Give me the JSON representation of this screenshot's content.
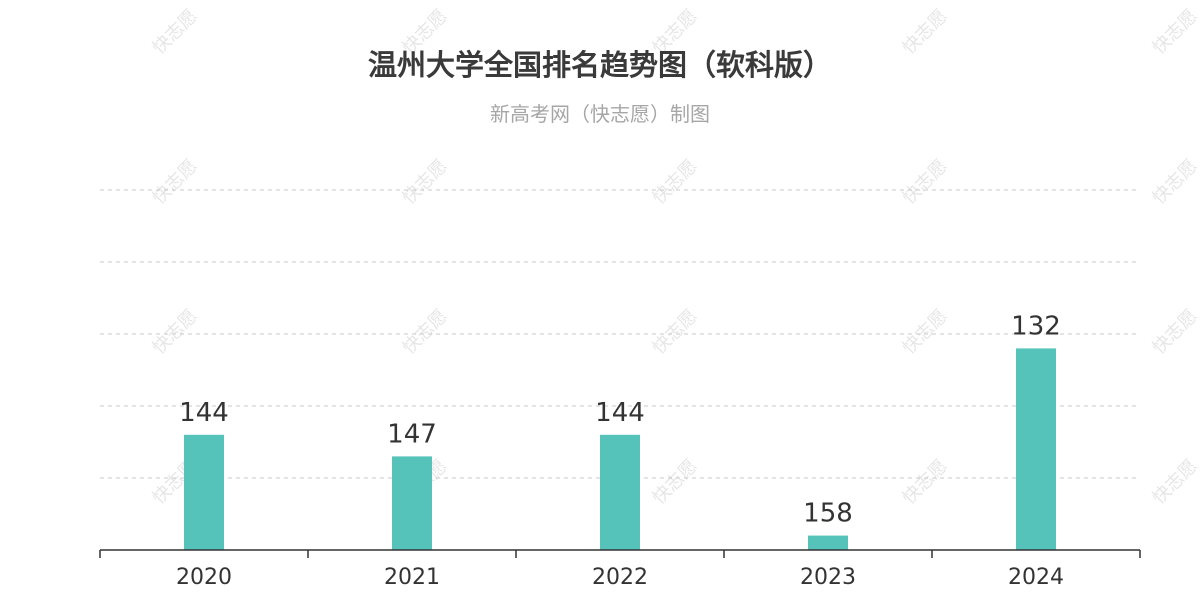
{
  "title": "温州大学全国排名趋势图（软科版）",
  "subtitle": "新高考网（快志愿）制图",
  "watermark": "快志愿",
  "chart_data": {
    "type": "bar",
    "categories": [
      "2020",
      "2021",
      "2022",
      "2023",
      "2024"
    ],
    "values": [
      144,
      147,
      144,
      158,
      132
    ],
    "value_labels": [
      "144",
      "147",
      "144",
      "158",
      "132"
    ],
    "bar_color": "#55c3b9",
    "grid": "dashed-horizontal",
    "y_axis_inverted": true,
    "ylim": [
      110,
      160
    ]
  }
}
